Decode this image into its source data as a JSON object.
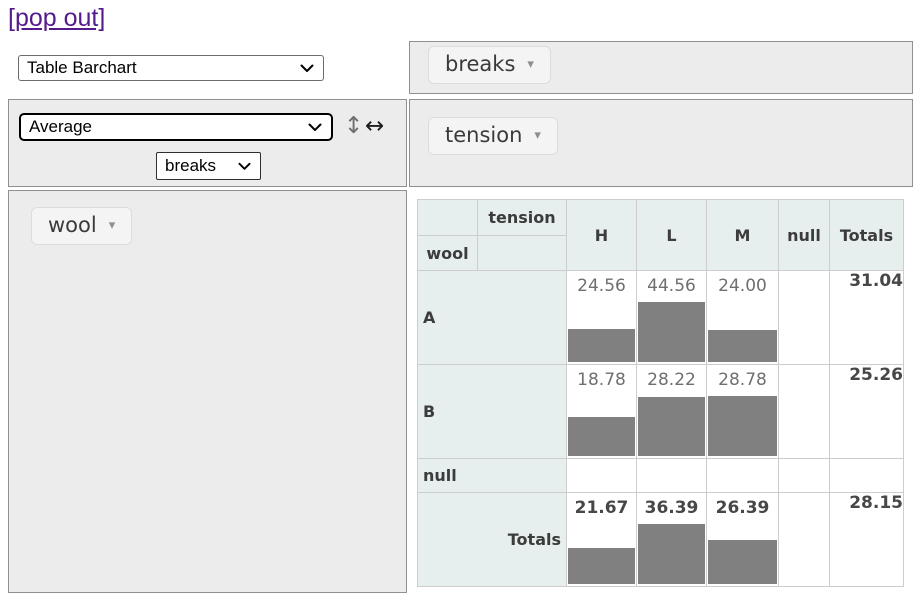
{
  "pop_out": {
    "label": "[pop out]"
  },
  "renderer_select": {
    "value": "Table Barchart"
  },
  "aggregator": {
    "value": "Average",
    "arg_value": "breaks"
  },
  "icons": {
    "dropdown_triangle": "▾",
    "row_order": "↕",
    "col_order": "↔"
  },
  "unused_attrs": {
    "items": [
      {
        "label": "breaks"
      }
    ]
  },
  "col_attrs": {
    "items": [
      {
        "label": "tension"
      }
    ]
  },
  "row_attrs": {
    "items": [
      {
        "label": "wool"
      }
    ]
  },
  "pivot_table": {
    "col_axis_label": "tension",
    "row_axis_label": "wool",
    "col_headers": [
      "H",
      "L",
      "M",
      "null",
      "Totals"
    ],
    "rows": [
      {
        "label": "A",
        "values": [
          "24.56",
          "44.56",
          "24.00",
          ""
        ],
        "row_total": "31.04",
        "bars": [
          33,
          60,
          32
        ]
      },
      {
        "label": "B",
        "values": [
          "18.78",
          "28.22",
          "28.78",
          ""
        ],
        "row_total": "25.26",
        "bars": [
          39,
          59,
          60
        ]
      },
      {
        "label": "null",
        "values": [
          "",
          "",
          "",
          ""
        ],
        "row_total": "",
        "bars": [
          0,
          0,
          0
        ]
      }
    ],
    "totals_row": {
      "label": "Totals",
      "values": [
        "21.67",
        "36.39",
        "26.39",
        ""
      ],
      "row_total": "28.15",
      "bars": [
        36,
        60,
        44
      ]
    }
  },
  "colors": {
    "bar": "#808080",
    "header_bg": "#e6eeee",
    "table_border": "#cdcdcd",
    "panel_bg": "#ececec",
    "link": "#551a8b"
  }
}
